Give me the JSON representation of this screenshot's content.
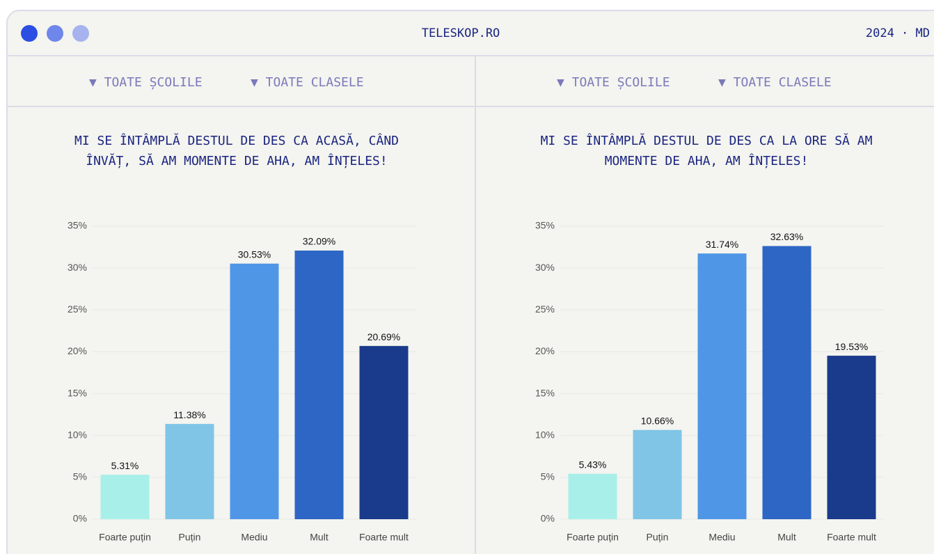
{
  "header": {
    "site": "TELESKOP.RO",
    "right": "2024 · MD"
  },
  "filters": [
    [
      "▼ TOATE ȘCOLILE",
      "▼ TOATE CLASELE"
    ],
    [
      "▼ TOATE ȘCOLILE",
      "▼ TOATE CLASELE"
    ]
  ],
  "chart_data": [
    {
      "type": "bar",
      "title": [
        "MI SE ÎNTÂMPLĂ DESTUL DE DES CA ACASĂ, CÂND",
        "ÎNVĂȚ, SĂ AM MOMENTE DE AHA, AM ÎNȚELES!"
      ],
      "categories": [
        "Foarte puțin",
        "Puțin",
        "Mediu",
        "Mult",
        "Foarte mult"
      ],
      "values": [
        5.31,
        11.38,
        30.53,
        32.09,
        20.69
      ],
      "value_labels": [
        "5.31%",
        "11.38%",
        "30.53%",
        "32.09%",
        "20.69%"
      ],
      "colors": [
        "#a9efe9",
        "#80c5e6",
        "#4f96e6",
        "#2e66c5",
        "#1a3a8b"
      ],
      "ylim": [
        0,
        35
      ],
      "yticks": [
        {
          "value": 0,
          "label": "0%"
        },
        {
          "value": 5,
          "label": "5%"
        },
        {
          "value": 10,
          "label": "10%"
        },
        {
          "value": 15,
          "label": "15%"
        },
        {
          "value": 20,
          "label": "20%"
        },
        {
          "value": 25,
          "label": "25%"
        },
        {
          "value": 30,
          "label": "30%"
        },
        {
          "value": 35,
          "label": "35%"
        }
      ],
      "grid": true
    },
    {
      "type": "bar",
      "title": [
        "MI SE ÎNTÂMPLĂ DESTUL DE DES CA LA ORE SĂ AM",
        "MOMENTE DE AHA, AM ÎNȚELES!"
      ],
      "categories": [
        "Foarte puțin",
        "Puțin",
        "Mediu",
        "Mult",
        "Foarte mult"
      ],
      "values": [
        5.43,
        10.66,
        31.74,
        32.63,
        19.53
      ],
      "value_labels": [
        "5.43%",
        "10.66%",
        "31.74%",
        "32.63%",
        "19.53%"
      ],
      "colors": [
        "#a9efe9",
        "#80c5e6",
        "#4f96e6",
        "#2e66c5",
        "#1a3a8b"
      ],
      "ylim": [
        0,
        35
      ],
      "yticks": [
        {
          "value": 0,
          "label": "0%"
        },
        {
          "value": 5,
          "label": "5%"
        },
        {
          "value": 10,
          "label": "10%"
        },
        {
          "value": 15,
          "label": "15%"
        },
        {
          "value": 20,
          "label": "20%"
        },
        {
          "value": 25,
          "label": "25%"
        },
        {
          "value": 30,
          "label": "30%"
        },
        {
          "value": 35,
          "label": "35%"
        }
      ],
      "grid": true
    }
  ]
}
